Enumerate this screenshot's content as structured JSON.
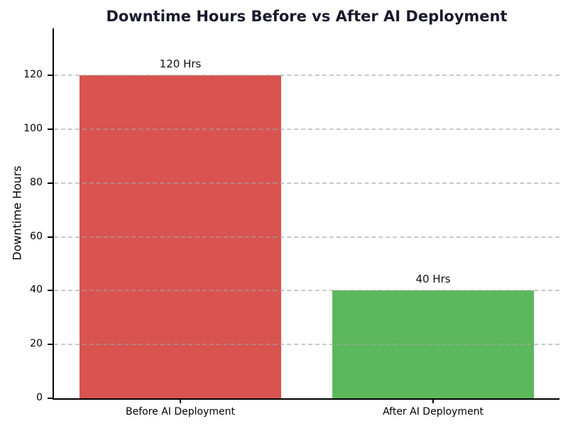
{
  "chart_data": {
    "type": "bar",
    "title": "Downtime Hours Before vs After AI Deployment",
    "ylabel": "Downtime Hours",
    "categories": [
      "Before AI Deployment",
      "After AI Deployment"
    ],
    "values": [
      120,
      40
    ],
    "bar_labels": [
      "120 Hrs",
      "40 Hrs"
    ],
    "bar_colors": [
      "#d9534f",
      "#5cb85c"
    ],
    "yticks": [
      0,
      20,
      40,
      60,
      80,
      100,
      120
    ],
    "ylim": [
      0,
      137.5
    ],
    "bar_width_fraction": 0.8,
    "grid": "horizontal-dashed",
    "grid_color": "#cccccc",
    "legend": "none",
    "title_color": "#1a1a2e",
    "axis_color": "#000000",
    "background": "#ffffff"
  }
}
